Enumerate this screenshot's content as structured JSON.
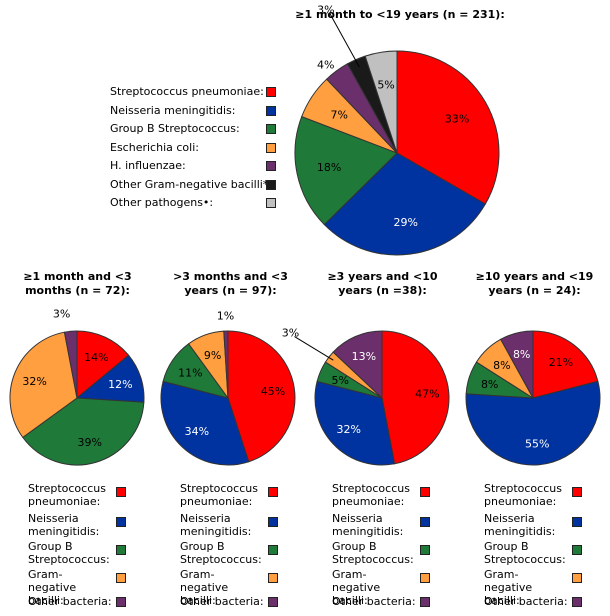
{
  "colors": {
    "red": "#ff0000",
    "blue": "#0033a0",
    "green": "#1f7a3a",
    "orange": "#ff9f40",
    "purple": "#6b2f6b",
    "black": "#1a1a1a",
    "gray": "#c0c0c0"
  },
  "main_legend": [
    {
      "label": "Streptococcus pneumoniae:",
      "color": "#ff0000"
    },
    {
      "label": "Neisseria meningitidis:",
      "color": "#0033a0"
    },
    {
      "label": "Group B Streptococcus:",
      "color": "#1f7a3a"
    },
    {
      "label": "Escherichia coli:",
      "color": "#ff9f40"
    },
    {
      "label": "H. influenzae:",
      "color": "#6b2f6b"
    },
    {
      "label": "Other Gram-negative bacilli*:",
      "color": "#1a1a1a"
    },
    {
      "label": "Other pathogens•:",
      "color": "#c0c0c0"
    }
  ],
  "small_legend": [
    {
      "label": "Streptococcus pneumoniae:",
      "color": "#ff0000"
    },
    {
      "label": "Neisseria meningitidis:",
      "color": "#0033a0"
    },
    {
      "label": "Group B Streptococcus:",
      "color": "#1f7a3a"
    },
    {
      "label": "Gram-negative bacilli:",
      "color": "#ff9f40"
    },
    {
      "label": "Other bacteria:",
      "color": "#6b2f6b"
    }
  ],
  "chart_data": [
    {
      "type": "pie",
      "title": "≥1 month to <19 years (n = 231):",
      "slices": [
        {
          "label": "33%",
          "value": 33,
          "color": "#ff0000"
        },
        {
          "label": "29%",
          "value": 29,
          "color": "#0033a0"
        },
        {
          "label": "18%",
          "value": 18,
          "color": "#1f7a3a"
        },
        {
          "label": "7%",
          "value": 7,
          "color": "#ff9f40"
        },
        {
          "label": "4%",
          "value": 4,
          "color": "#6b2f6b"
        },
        {
          "label": "3%",
          "value": 3,
          "color": "#1a1a1a"
        },
        {
          "label": "5%",
          "value": 5,
          "color": "#c0c0c0"
        }
      ]
    },
    {
      "type": "pie",
      "title": "≥1 month and <3 months (n = 72):",
      "slices": [
        {
          "label": "14%",
          "value": 14,
          "color": "#ff0000"
        },
        {
          "label": "12%",
          "value": 12,
          "color": "#0033a0"
        },
        {
          "label": "39%",
          "value": 39,
          "color": "#1f7a3a"
        },
        {
          "label": "32%",
          "value": 32,
          "color": "#ff9f40"
        },
        {
          "label": "3%",
          "value": 3,
          "color": "#6b2f6b"
        }
      ]
    },
    {
      "type": "pie",
      "title": ">3 months and <3 years (n = 97):",
      "slices": [
        {
          "label": "45%",
          "value": 45,
          "color": "#ff0000"
        },
        {
          "label": "34%",
          "value": 34,
          "color": "#0033a0"
        },
        {
          "label": "11%",
          "value": 11,
          "color": "#1f7a3a"
        },
        {
          "label": "9%",
          "value": 9,
          "color": "#ff9f40"
        },
        {
          "label": "1%",
          "value": 1,
          "color": "#6b2f6b"
        }
      ]
    },
    {
      "type": "pie",
      "title": "≥3 years and <10 years (n =38):",
      "slices": [
        {
          "label": "47%",
          "value": 47,
          "color": "#ff0000"
        },
        {
          "label": "32%",
          "value": 32,
          "color": "#0033a0"
        },
        {
          "label": "5%",
          "value": 5,
          "color": "#1f7a3a"
        },
        {
          "label": "3%",
          "value": 3,
          "color": "#ff9f40"
        },
        {
          "label": "13%",
          "value": 13,
          "color": "#6b2f6b"
        }
      ]
    },
    {
      "type": "pie",
      "title": "≥10 years and <19 years (n = 24):",
      "slices": [
        {
          "label": "21%",
          "value": 21,
          "color": "#ff0000"
        },
        {
          "label": "55%",
          "value": 55,
          "color": "#0033a0"
        },
        {
          "label": "8%",
          "value": 8,
          "color": "#1f7a3a"
        },
        {
          "label": "8%",
          "value": 8,
          "color": "#ff9f40"
        },
        {
          "label": "8%",
          "value": 8,
          "color": "#6b2f6b"
        }
      ]
    }
  ]
}
